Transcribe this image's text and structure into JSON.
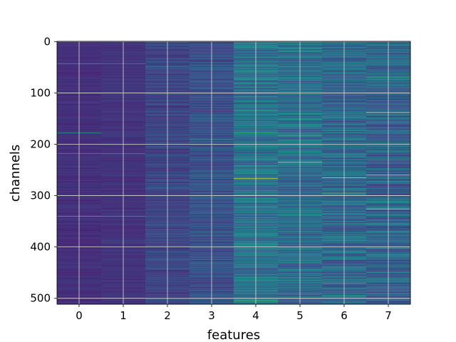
{
  "chart_data": {
    "type": "heatmap",
    "title": "",
    "xlabel": "features",
    "ylabel": "channels",
    "x_categories": [
      "0",
      "1",
      "2",
      "3",
      "4",
      "5",
      "6",
      "7"
    ],
    "y_ticks": [
      0,
      100,
      200,
      300,
      400,
      500
    ],
    "ylim": [
      512,
      0
    ],
    "n_rows": 512,
    "n_cols": 8,
    "grid": true,
    "colormap": "viridis",
    "row_mean_intensity": [
      0.16,
      0.17,
      0.22,
      0.26,
      0.38,
      0.36,
      0.34,
      0.33
    ],
    "row_variation": [
      0.03,
      0.03,
      0.06,
      0.08,
      0.14,
      0.14,
      0.14,
      0.15
    ],
    "highlights": [
      {
        "feature": 0,
        "channel": 43,
        "intensity": 0.55
      },
      {
        "feature": 0,
        "channel": 178,
        "intensity": 0.6
      },
      {
        "feature": 0,
        "channel": 218,
        "intensity": 0.55
      },
      {
        "feature": 0,
        "channel": 340,
        "intensity": 0.7
      },
      {
        "feature": 1,
        "channel": 43,
        "intensity": 0.5
      },
      {
        "feature": 1,
        "channel": 218,
        "intensity": 0.55
      },
      {
        "feature": 1,
        "channel": 340,
        "intensity": 0.6
      },
      {
        "feature": 2,
        "channel": 48,
        "intensity": 0.5
      },
      {
        "feature": 3,
        "channel": 190,
        "intensity": 0.5
      },
      {
        "feature": 4,
        "channel": 178,
        "intensity": 0.65
      },
      {
        "feature": 4,
        "channel": 267,
        "intensity": 1.0
      },
      {
        "feature": 4,
        "channel": 505,
        "intensity": 0.7
      },
      {
        "feature": 5,
        "channel": 183,
        "intensity": 0.65
      },
      {
        "feature": 5,
        "channel": 235,
        "intensity": 0.95
      },
      {
        "feature": 5,
        "channel": 500,
        "intensity": 0.7
      },
      {
        "feature": 6,
        "channel": 265,
        "intensity": 0.95
      },
      {
        "feature": 6,
        "channel": 295,
        "intensity": 0.75
      },
      {
        "feature": 6,
        "channel": 470,
        "intensity": 0.7
      },
      {
        "feature": 7,
        "channel": 70,
        "intensity": 0.65
      },
      {
        "feature": 7,
        "channel": 138,
        "intensity": 1.0
      },
      {
        "feature": 7,
        "channel": 260,
        "intensity": 1.0
      },
      {
        "feature": 7,
        "channel": 326,
        "intensity": 0.95
      }
    ]
  }
}
